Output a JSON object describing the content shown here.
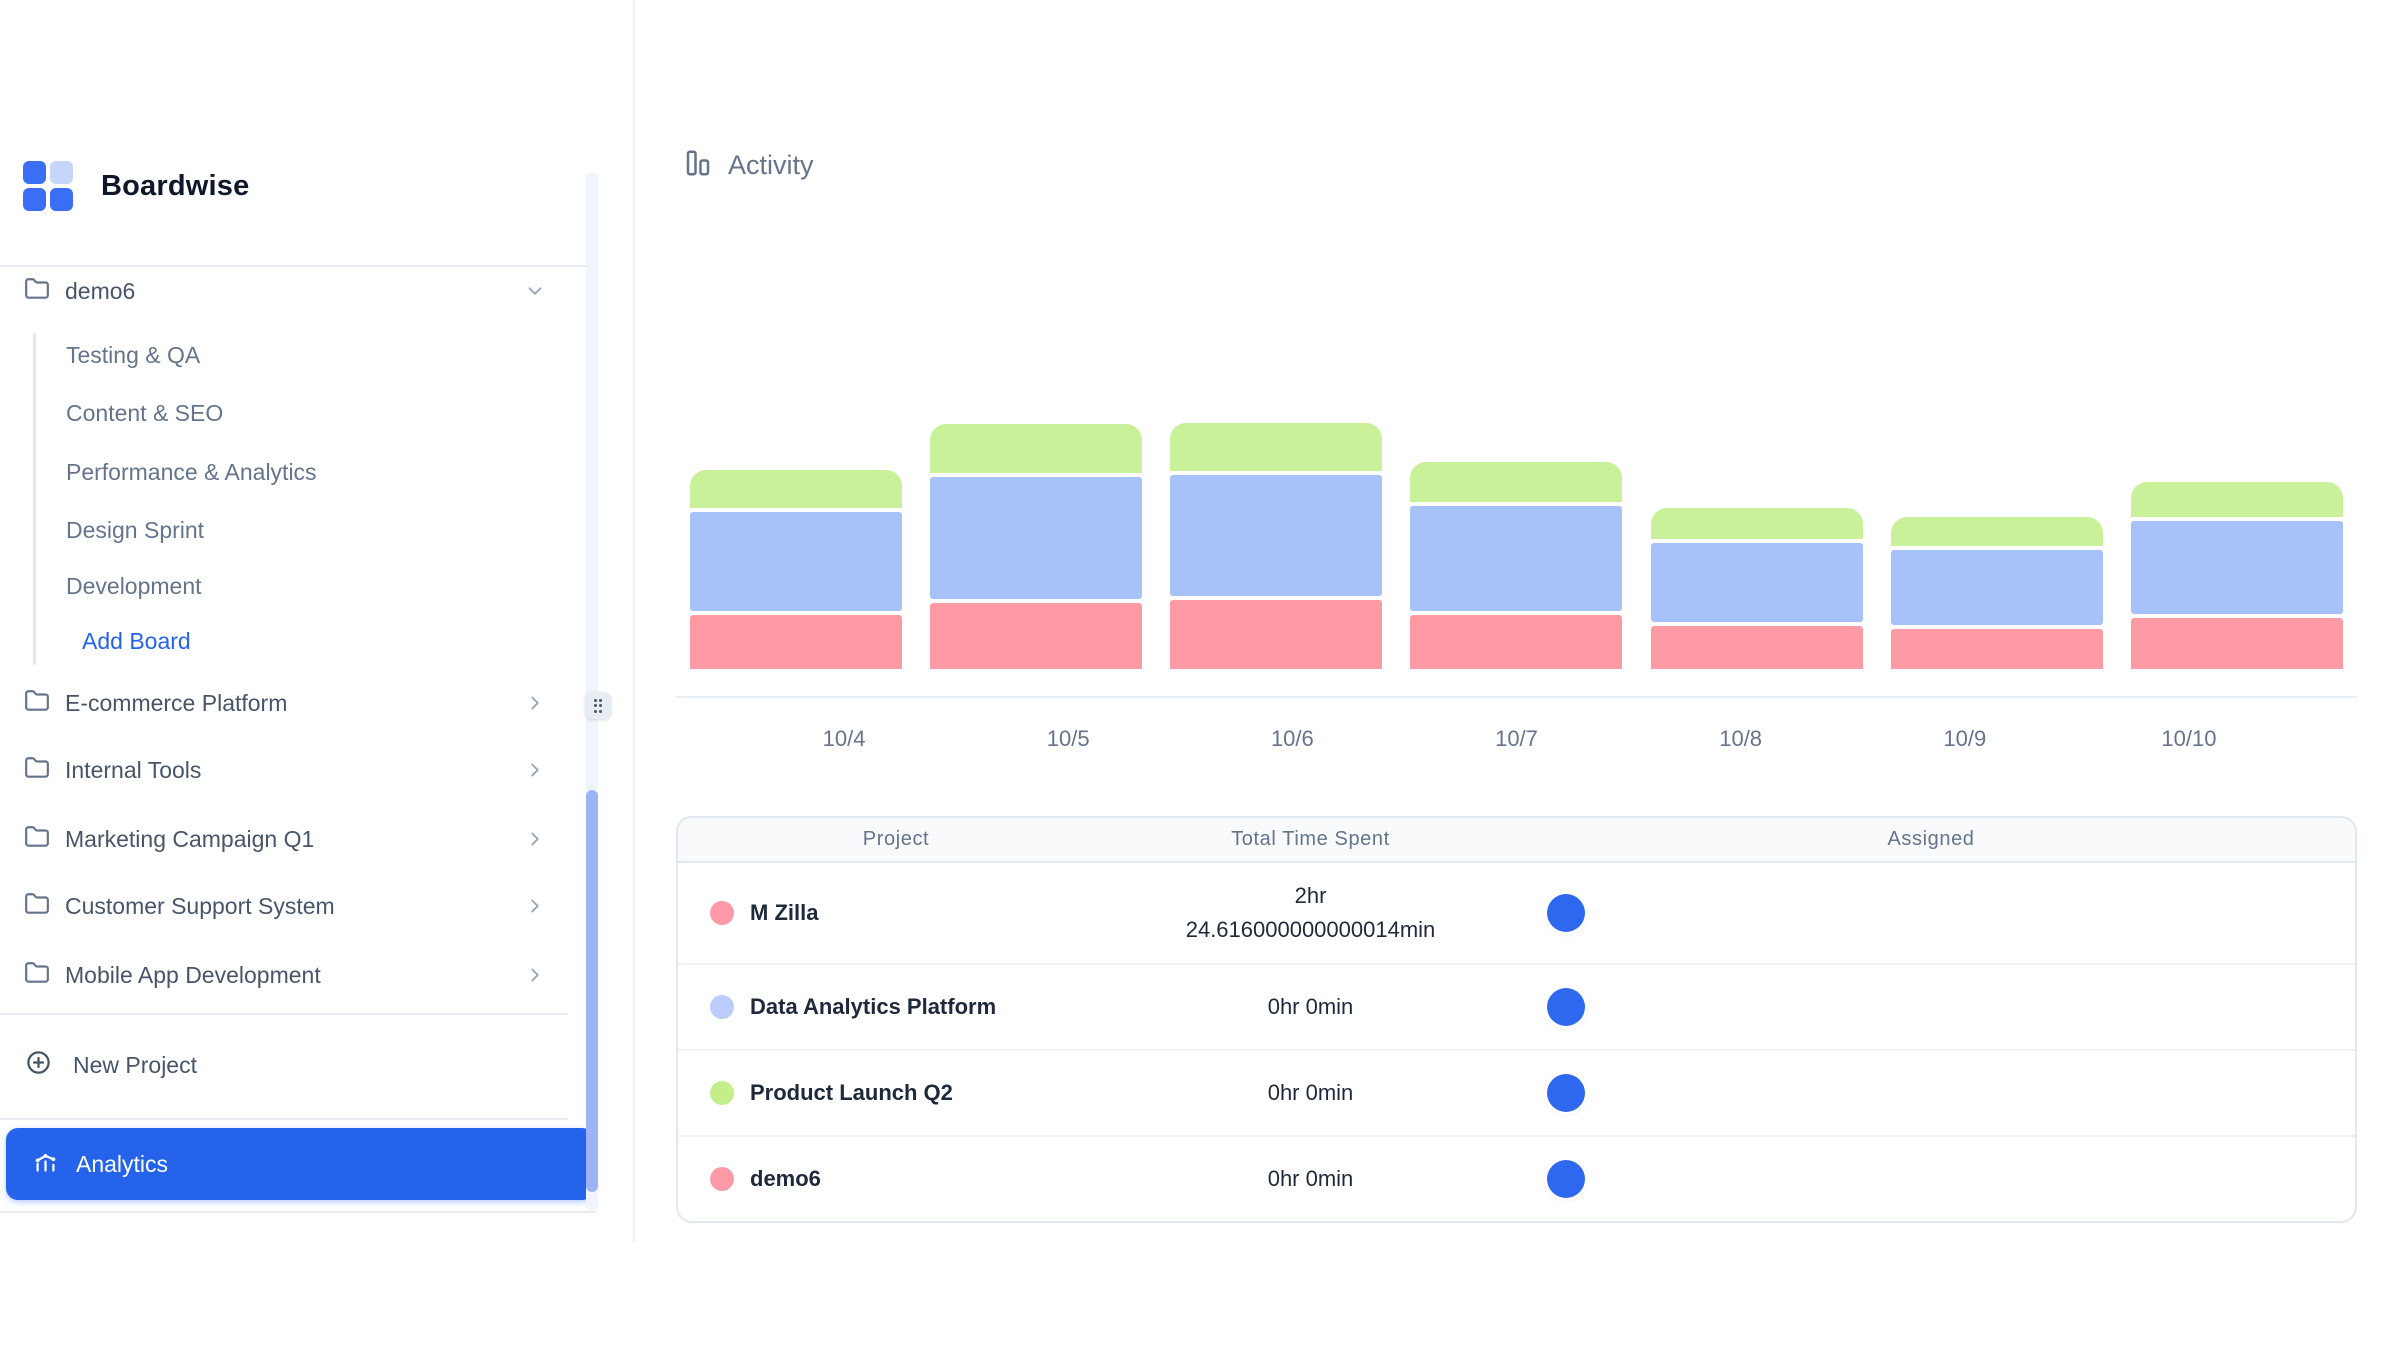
{
  "app": {
    "brand": "Boardwise"
  },
  "sidebar": {
    "tree": {
      "project": "demo6",
      "boards": [
        "Testing & QA",
        "Content & SEO",
        "Performance & Analytics",
        "Design Sprint",
        "Development"
      ],
      "add_board": "Add Board"
    },
    "projects": [
      "E-commerce Platform",
      "Internal Tools",
      "Marketing Campaign Q1",
      "Customer Support System",
      "Mobile App Development"
    ],
    "new_project": "New Project",
    "analytics": "Analytics"
  },
  "main": {
    "section_title": "Activity",
    "table": {
      "columns": [
        "Project",
        "Total Time Spent",
        "Assigned"
      ],
      "rows": [
        {
          "project": "M Zilla",
          "dot_color": "#fd9aa8",
          "time_lines": [
            "2hr",
            "24.616000000000014min"
          ]
        },
        {
          "project": "Data Analytics Platform",
          "dot_color": "#b9ccfa",
          "time_lines": [
            "0hr 0min"
          ]
        },
        {
          "project": "Product Launch Q2",
          "dot_color": "#c3ee8a",
          "time_lines": [
            "0hr 0min"
          ]
        },
        {
          "project": "demo6",
          "dot_color": "#fd9aa8",
          "time_lines": [
            "0hr 0min"
          ]
        }
      ]
    }
  },
  "chart_data": {
    "type": "bar",
    "subtype": "stacked-bar",
    "title": "Activity",
    "categories": [
      "10/4",
      "10/5",
      "10/6",
      "10/7",
      "10/8",
      "10/9",
      "10/10"
    ],
    "series": [
      {
        "name": "M Zilla",
        "color": "#fd9aa4",
        "stack_position": "bottom",
        "values": [
          54,
          66,
          69,
          54,
          43,
          40,
          51
        ]
      },
      {
        "name": "Data Analytics Platform",
        "color": "#a6c2f9",
        "stack_position": "middle",
        "values": [
          99,
          122,
          121,
          105,
          79,
          75,
          93
        ]
      },
      {
        "name": "Product Launch Q2",
        "color": "#c9f19a",
        "stack_position": "top",
        "values": [
          38,
          49,
          48,
          40,
          31,
          29,
          35
        ]
      }
    ],
    "value_units": "relative segment heights in screen pixels (no y-axis ticks shown in UI)",
    "xlabel": "",
    "ylabel": "",
    "grid": "baseline only",
    "legend": "none (colors match project dots in table below)"
  },
  "colors": {
    "accent_blue": "#2563eb",
    "avatar_blue": "#2d68ee",
    "bar_red": "#fd9aa4",
    "bar_blue": "#a6c2f9",
    "bar_green": "#c9f19a",
    "scroll_thumb": "#9cb3f6",
    "logo_blue": "#3b6ef6",
    "logo_light_blue": "#c6d6fa"
  }
}
